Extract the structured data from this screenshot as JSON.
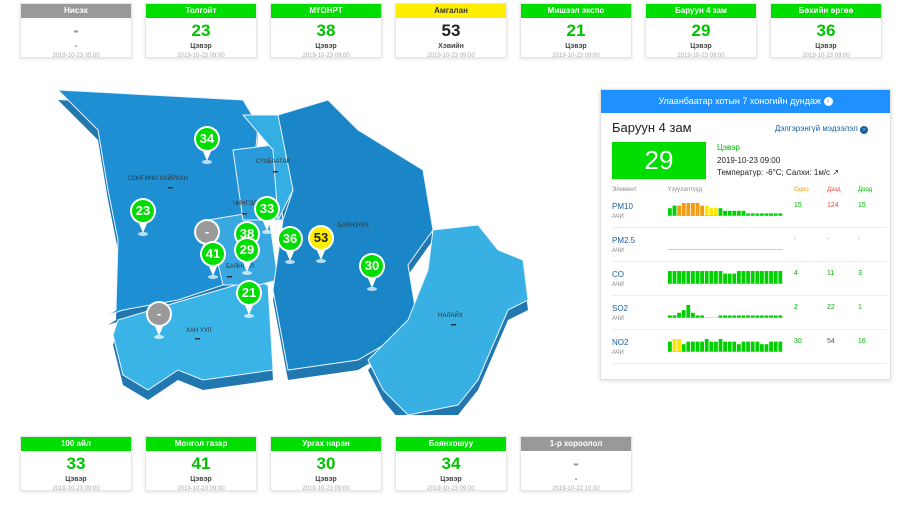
{
  "top_cards": [
    {
      "name": "Нисэх",
      "value": "-",
      "status": "-",
      "time": "2019-10-23 05:00",
      "color": "#999999"
    },
    {
      "name": "Толгойт",
      "value": "23",
      "status": "Цэвэр",
      "time": "2019-10-23 09:00",
      "color": "#00dd00"
    },
    {
      "name": "МҮОНРТ",
      "value": "38",
      "status": "Цэвэр",
      "time": "2019-10-23 09:00",
      "color": "#00dd00"
    },
    {
      "name": "Амгалан",
      "value": "53",
      "status": "Хэвийн",
      "time": "2019-10-23 09:00",
      "color": "#ffee00"
    },
    {
      "name": "Мишээл экспо",
      "value": "21",
      "status": "Цэвэр",
      "time": "2019-10-23 09:00",
      "color": "#00dd00"
    },
    {
      "name": "Баруун 4 зам",
      "value": "29",
      "status": "Цэвэр",
      "time": "2019-10-23 09:00",
      "color": "#00dd00"
    },
    {
      "name": "Бөхийн өргөө",
      "value": "36",
      "status": "Цэвэр",
      "time": "2019-10-23 09:00",
      "color": "#00dd00"
    }
  ],
  "bottom_cards": [
    {
      "name": "100 айл",
      "value": "33",
      "status": "Цэвэр",
      "time": "2019-10-23 09:00",
      "color": "#00dd00"
    },
    {
      "name": "Монгол газар",
      "value": "41",
      "status": "Цэвэр",
      "time": "2019-10-23 09:00",
      "color": "#00dd00"
    },
    {
      "name": "Ургах наран",
      "value": "30",
      "status": "Цэвэр",
      "time": "2019-10-23 09:00",
      "color": "#00dd00"
    },
    {
      "name": "Баянхошуу",
      "value": "34",
      "status": "Цэвэр",
      "time": "2019-10-23 09:00",
      "color": "#00dd00"
    },
    {
      "name": "1-р хороолол",
      "value": "-",
      "status": "-",
      "time": "2019-10-22 10:30",
      "color": "#999999"
    }
  ],
  "map": {
    "districts": [
      "СОНГИНО ХАЙРХАН",
      "СҮХБААТАР",
      "ЧИНГЭЛТЭЙ",
      "БАЯНЗҮРХ",
      "БАЯНГОЛ",
      "ХАН УУЛ",
      "НАЛАЙХ"
    ],
    "pins": [
      {
        "value": "34",
        "color": "#00dd00"
      },
      {
        "value": "23",
        "color": "#00dd00"
      },
      {
        "value": "33",
        "color": "#00dd00"
      },
      {
        "value": "-",
        "color": "#999999"
      },
      {
        "value": "38",
        "color": "#00dd00"
      },
      {
        "value": "41",
        "color": "#00dd00"
      },
      {
        "value": "29",
        "color": "#00dd00"
      },
      {
        "value": "36",
        "color": "#00dd00"
      },
      {
        "value": "53",
        "color": "#ffee00"
      },
      {
        "value": "30",
        "color": "#00dd00"
      },
      {
        "value": "21",
        "color": "#00dd00"
      },
      {
        "value": "-",
        "color": "#999999"
      }
    ]
  },
  "panel": {
    "title": "Улаанбаатар хотын 7 хоногийн дундаж",
    "station": "Баруун 4 зам",
    "details_link": "Дэлгэрэнгүй мэдээлэл",
    "aqi": "29",
    "status": "Цэвэр",
    "time": "2019-10-23 09:00",
    "weather": "Температур: -6°C; Салхи: 1м/с",
    "col_element": "Элемент",
    "col_history": "Үзүүлэлтүүд",
    "col_now": "Одоо",
    "col_max": "Дээд",
    "col_min": "Доод",
    "rows": [
      {
        "name": "PM10",
        "unit": "АЧИ",
        "now": "15",
        "max": "124",
        "min": "15",
        "bars": [
          3,
          4,
          4,
          5,
          5,
          5,
          5,
          4,
          4,
          3,
          3,
          3,
          2,
          2,
          2,
          2,
          2,
          1,
          1,
          1,
          1,
          1,
          1,
          1,
          1
        ],
        "colors": [
          "g",
          "g",
          "o",
          "o",
          "o",
          "o",
          "o",
          "o",
          "y",
          "y",
          "y",
          "g",
          "g",
          "g",
          "g",
          "g",
          "g",
          "g",
          "g",
          "g",
          "g",
          "g",
          "g",
          "g",
          "g"
        ]
      },
      {
        "name": "PM2.5",
        "unit": "АЧИ",
        "now": "-",
        "max": "-",
        "min": "-",
        "bars": [],
        "colors": []
      },
      {
        "name": "CO",
        "unit": "АЧИ",
        "now": "4",
        "max": "11",
        "min": "3",
        "bars": [
          5,
          5,
          5,
          5,
          5,
          5,
          5,
          5,
          5,
          5,
          5,
          5,
          4,
          4,
          4,
          5,
          5,
          5,
          5,
          5,
          5,
          5,
          5,
          5,
          5
        ],
        "colors": []
      },
      {
        "name": "SO2",
        "unit": "АЧИ",
        "now": "2",
        "max": "22",
        "min": "1",
        "bars": [
          1,
          1,
          2,
          3,
          5,
          2,
          1,
          1,
          0,
          0,
          0,
          1,
          1,
          1,
          1,
          1,
          1,
          1,
          1,
          1,
          1,
          1,
          1,
          1,
          1
        ],
        "colors": []
      },
      {
        "name": "NO2",
        "unit": "АЧИ",
        "now": "30",
        "max": "54",
        "min": "16",
        "bars": [
          4,
          5,
          5,
          3,
          4,
          4,
          4,
          4,
          5,
          4,
          4,
          5,
          4,
          4,
          4,
          3,
          4,
          4,
          4,
          4,
          3,
          3,
          4,
          4,
          4
        ],
        "colors": [
          "g",
          "y",
          "y",
          "g",
          "g",
          "g",
          "g",
          "g",
          "g",
          "g",
          "g",
          "g",
          "g",
          "g",
          "g",
          "g",
          "g",
          "g",
          "g",
          "g",
          "g",
          "g",
          "g",
          "g",
          "g"
        ]
      }
    ]
  }
}
